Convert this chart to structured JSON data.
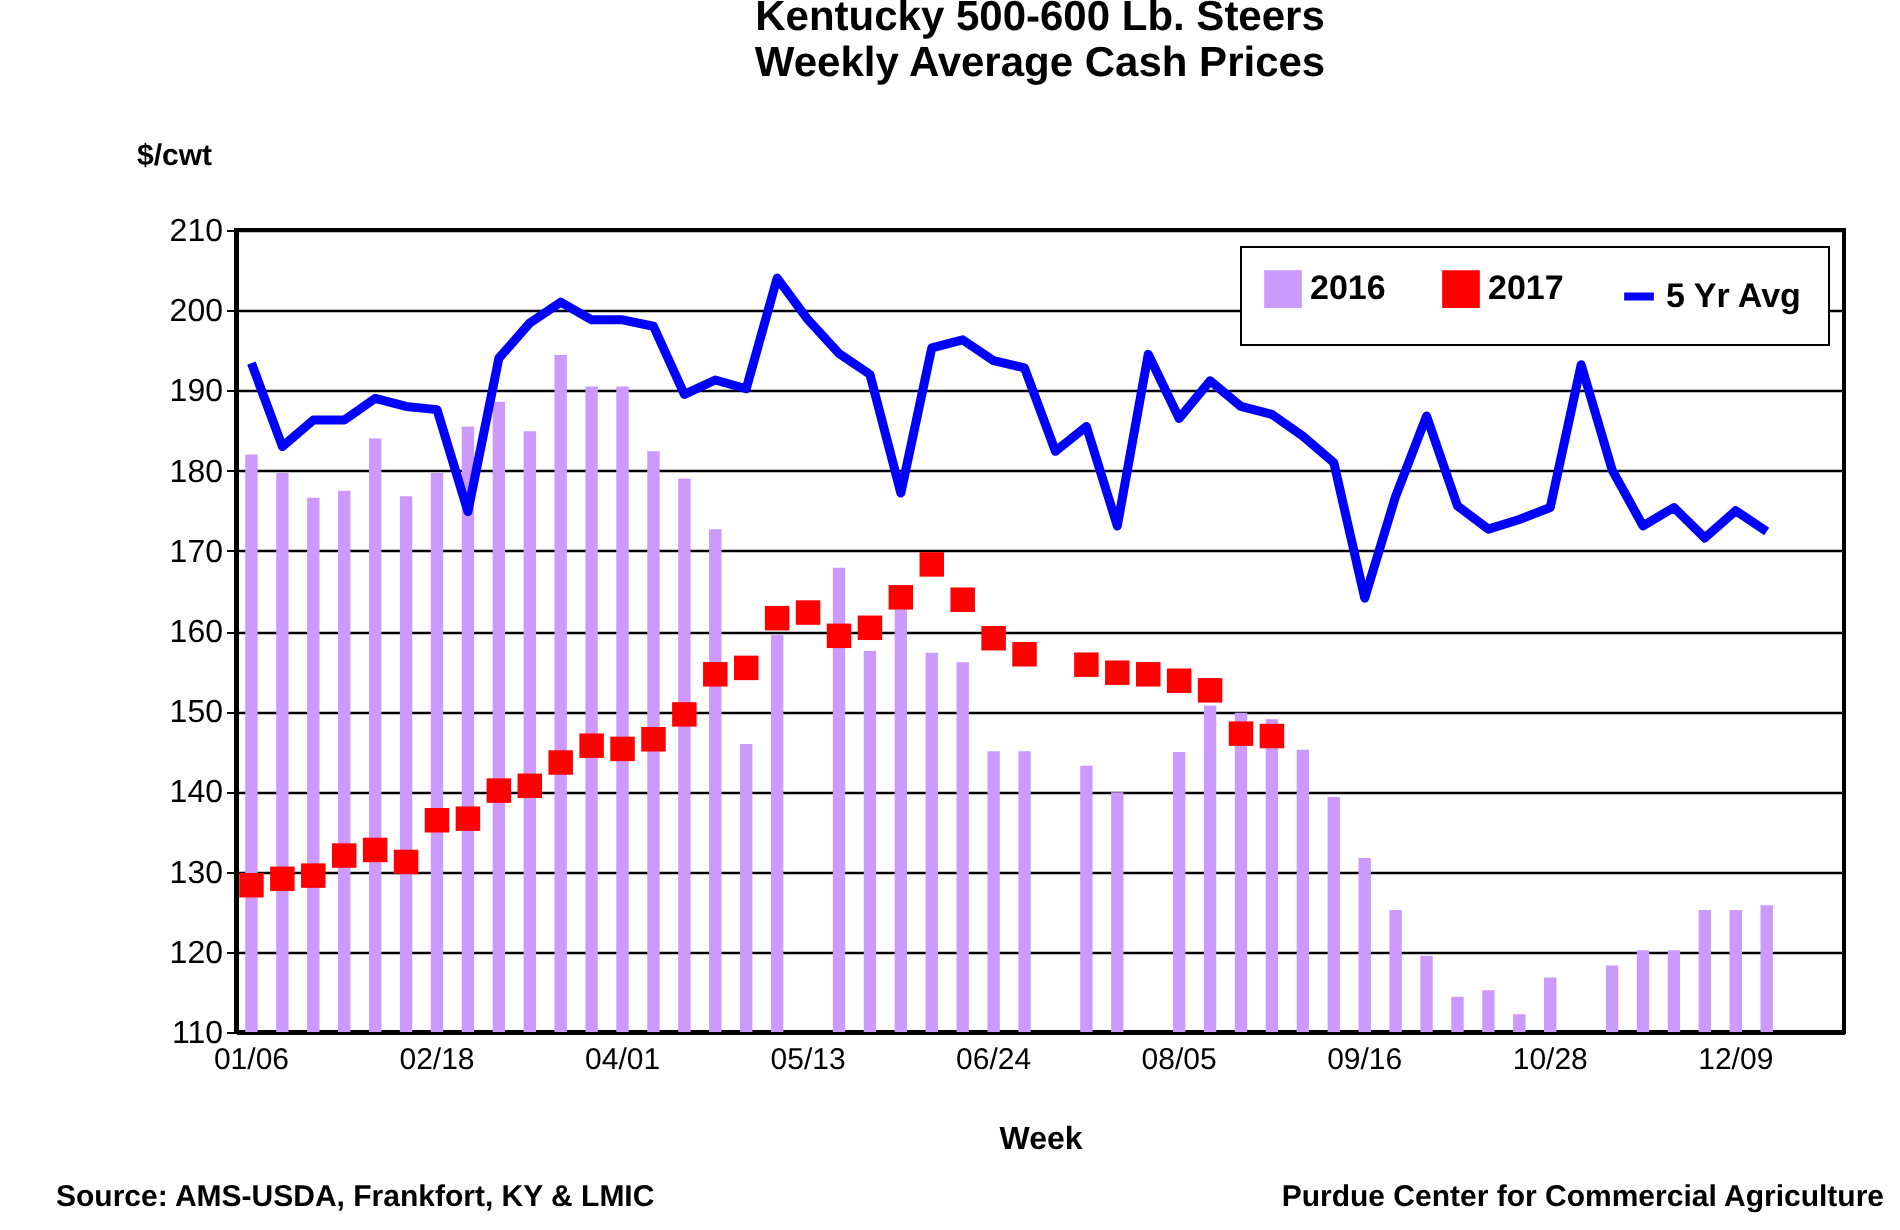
{
  "chart_data": {
    "type": "bar",
    "title": "Kentucky 500-600 Lb. Steers",
    "subtitle": "Weekly Average Cash Prices",
    "xlabel": "Week",
    "ylabel": "$/cwt",
    "annotations": [
      "Source:  AMS-USDA, Frankfort, KY & LMIC",
      "Purdue Center for Commercial Agriculture"
    ],
    "categories": [
      "01/06",
      null,
      null,
      null,
      null,
      null,
      "02/18",
      null,
      null,
      null,
      null,
      null,
      "04/01",
      null,
      null,
      null,
      null,
      null,
      "05/13",
      null,
      null,
      null,
      null,
      null,
      "06/24",
      null,
      null,
      null,
      null,
      null,
      "08/05",
      null,
      null,
      null,
      null,
      null,
      "09/16",
      null,
      null,
      null,
      null,
      null,
      "10/28",
      null,
      null,
      null,
      null,
      null,
      "12/09",
      null,
      null,
      null
    ],
    "series": [
      {
        "name": "2016",
        "color": "#cc99ff",
        "values": [
          182.0,
          179.7,
          176.6,
          177.5,
          184.0,
          176.8,
          179.7,
          185.5,
          188.6,
          184.9,
          194.4,
          190.5,
          190.5,
          182.4,
          179.0,
          172.7,
          145.9,
          159.5,
          null,
          167.9,
          157.5,
          162.7,
          157.3,
          156.1,
          145.0,
          145.0,
          null,
          143.2,
          139.9,
          null,
          144.9,
          150.7,
          149.8,
          149.0,
          145.2,
          139.3,
          131.7,
          125.2,
          119.5,
          114.4,
          115.2,
          112.2,
          116.8,
          null,
          118.3,
          120.2,
          120.2,
          125.2,
          125.2,
          125.8,
          null,
          null
        ]
      },
      {
        "name": "2017",
        "type": "scatter",
        "marker": "square",
        "color": "#ff0000",
        "values": [
          128.3,
          129.1,
          129.5,
          132.0,
          132.7,
          131.2,
          136.4,
          136.6,
          140.1,
          140.7,
          143.6,
          145.7,
          145.3,
          146.5,
          149.6,
          154.6,
          155.4,
          161.6,
          162.3,
          159.4,
          160.4,
          164.2,
          168.3,
          163.9,
          159.1,
          157.1,
          null,
          155.8,
          154.8,
          154.6,
          153.8,
          152.6,
          147.2,
          146.9,
          null,
          null,
          null,
          null,
          null,
          null,
          null,
          null,
          null,
          null,
          null,
          null,
          null,
          null,
          null,
          null,
          null,
          null
        ]
      },
      {
        "name": "5 Yr Avg",
        "type": "line",
        "color": "#0000ff",
        "values": [
          193.4,
          183.0,
          186.3,
          186.3,
          189.0,
          188.0,
          187.6,
          174.9,
          194.0,
          198.4,
          201.0,
          198.8,
          198.8,
          198.0,
          189.5,
          191.3,
          190.2,
          204.0,
          198.8,
          194.6,
          192.0,
          177.2,
          195.3,
          196.3,
          193.7,
          192.8,
          182.4,
          185.5,
          173.1,
          194.5,
          186.5,
          191.2,
          188.0,
          187.0,
          184.3,
          181.0,
          164.1,
          176.8,
          186.8,
          175.6,
          172.7,
          173.9,
          175.4,
          193.2,
          180.1,
          173.1,
          175.4,
          171.6,
          175.0,
          172.4,
          null,
          null
        ]
      }
    ],
    "ylim": [
      110,
      210
    ],
    "yticks": [
      110,
      120,
      130,
      140,
      150,
      160,
      170,
      180,
      190,
      200,
      210
    ],
    "grid": "y",
    "legend": "top right"
  }
}
